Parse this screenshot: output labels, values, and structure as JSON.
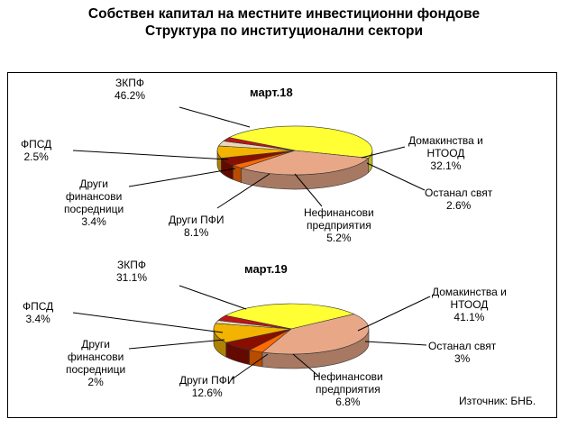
{
  "title_line1": "Собствен капитал на местните инвестиционни фондове",
  "title_line2": "Структура по институционални сектори",
  "source": "Източник: БНБ.",
  "chart_data": [
    {
      "type": "pie",
      "title": "март.18",
      "slices": [
        {
          "label": "ЗКПФ",
          "value": 46.2,
          "value_text": "46.2%",
          "color": "#ffff33"
        },
        {
          "label": "Домакинства и НТООД",
          "value": 32.1,
          "value_text": "32.1%",
          "color": "#e8a888"
        },
        {
          "label": "Останал свят",
          "value": 2.6,
          "value_text": "2.6%",
          "color": "#ff6a00"
        },
        {
          "label": "Нефинансови предприятия",
          "value": 5.2,
          "value_text": "5.2%",
          "color": "#8a0e00"
        },
        {
          "label": "Други ПФИ",
          "value": 8.1,
          "value_text": "8.1%",
          "color": "#f2b400"
        },
        {
          "label": "Други финансови посредници",
          "value": 3.4,
          "value_text": "3.4%",
          "color": "#e9d8b8"
        },
        {
          "label": "ФПСД",
          "value": 2.5,
          "value_text": "2.5%",
          "color": "#c01515"
        }
      ]
    },
    {
      "type": "pie",
      "title": "март.19",
      "slices": [
        {
          "label": "ЗКПФ",
          "value": 31.1,
          "value_text": "31.1%",
          "color": "#ffff33"
        },
        {
          "label": "Домакинства и НТООД",
          "value": 41.1,
          "value_text": "41.1%",
          "color": "#e8a888"
        },
        {
          "label": "Останал свят",
          "value": 3,
          "value_text": "3%",
          "color": "#ff6a00"
        },
        {
          "label": "Нефинансови предприятия",
          "value": 6.8,
          "value_text": "6.8%",
          "color": "#8a0e00"
        },
        {
          "label": "Други ПФИ",
          "value": 12.6,
          "value_text": "12.6%",
          "color": "#f2b400"
        },
        {
          "label": "Други финансови посредници",
          "value": 2,
          "value_text": "2%",
          "color": "#e9d8b8"
        },
        {
          "label": "ФПСД",
          "value": 3.4,
          "value_text": "3.4%",
          "color": "#c01515"
        }
      ]
    }
  ]
}
